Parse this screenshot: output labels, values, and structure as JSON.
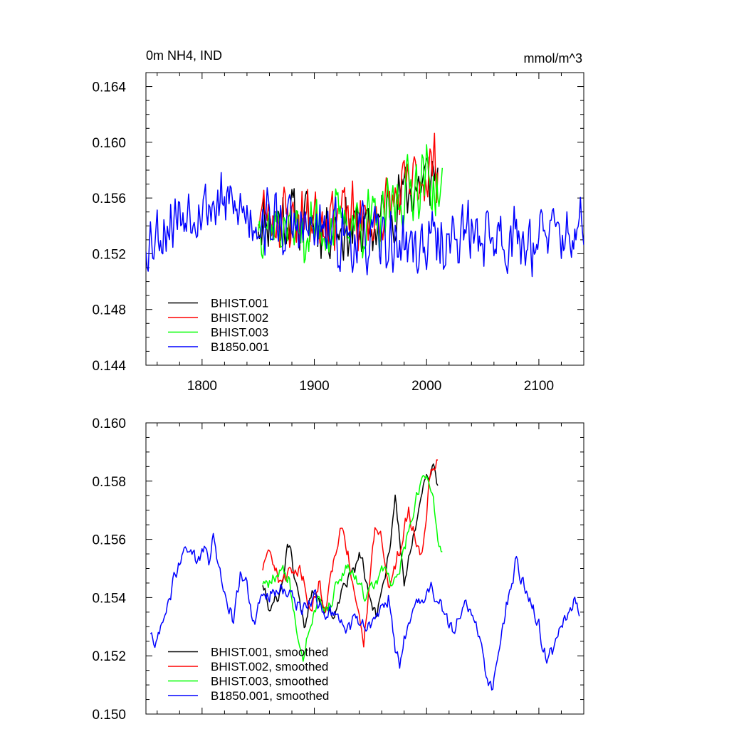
{
  "chart_data": [
    {
      "type": "line",
      "title_left": "0m NH4, IND",
      "title_right": "mmol/m^3",
      "xlim": [
        1750,
        2140
      ],
      "ylim": [
        0.144,
        0.165
      ],
      "xticks": [
        1800,
        1900,
        2000,
        2100
      ],
      "xtick_labels": [
        "1800",
        "1900",
        "2000",
        "2100"
      ],
      "yticks": [
        0.144,
        0.148,
        0.152,
        0.156,
        0.16,
        0.164
      ],
      "ytick_labels": [
        "0.144",
        "0.148",
        "0.152",
        "0.156",
        "0.160",
        "0.164"
      ],
      "legend_position": "bottom-left",
      "series": [
        {
          "name": "BHIST.001",
          "color": "#000000",
          "x_start": 1850,
          "noise": 0.0035,
          "seed": 11,
          "anchors": [
            [
              1850,
              0.1545
            ],
            [
              1880,
              0.1545
            ],
            [
              1920,
              0.154
            ],
            [
              1950,
              0.1535
            ],
            [
              1975,
              0.156
            ],
            [
              1995,
              0.157
            ],
            [
              2010,
              0.158
            ]
          ]
        },
        {
          "name": "BHIST.002",
          "color": "#ff0000",
          "x_start": 1850,
          "noise": 0.0035,
          "seed": 23,
          "anchors": [
            [
              1850,
              0.155
            ],
            [
              1880,
              0.1545
            ],
            [
              1920,
              0.155
            ],
            [
              1950,
              0.154
            ],
            [
              1975,
              0.156
            ],
            [
              1995,
              0.1575
            ],
            [
              2010,
              0.1585
            ]
          ]
        },
        {
          "name": "BHIST.003",
          "color": "#00ff00",
          "x_start": 1850,
          "noise": 0.0035,
          "seed": 37,
          "anchors": [
            [
              1850,
              0.1545
            ],
            [
              1890,
              0.1535
            ],
            [
              1930,
              0.1545
            ],
            [
              1960,
              0.154
            ],
            [
              1985,
              0.157
            ],
            [
              2000,
              0.1575
            ],
            [
              2014,
              0.156
            ]
          ]
        },
        {
          "name": "B1850.001",
          "color": "#0000ff",
          "x_start": 1750,
          "noise": 0.0035,
          "seed": 53,
          "anchors": [
            [
              1750,
              0.153
            ],
            [
              1790,
              0.1555
            ],
            [
              1820,
              0.1555
            ],
            [
              1850,
              0.1545
            ],
            [
              1900,
              0.1535
            ],
            [
              1950,
              0.153
            ],
            [
              1990,
              0.1525
            ],
            [
              2040,
              0.1535
            ],
            [
              2090,
              0.153
            ],
            [
              2140,
              0.1535
            ]
          ]
        }
      ]
    },
    {
      "type": "line",
      "xlim": [
        1750,
        2140
      ],
      "ylim": [
        0.15,
        0.16
      ],
      "xticks": [
        1800,
        1900,
        2000,
        2100
      ],
      "yticks": [
        0.15,
        0.152,
        0.154,
        0.156,
        0.158,
        0.16
      ],
      "ytick_labels": [
        "0.150",
        "0.152",
        "0.154",
        "0.156",
        "0.158",
        "0.160"
      ],
      "legend_position": "bottom-left",
      "series": [
        {
          "name": "BHIST.001, smoothed",
          "color": "#000000",
          "x_start": 1854,
          "noise": 0.00035,
          "seed": 101,
          "anchors": [
            [
              1854,
              0.1545
            ],
            [
              1860,
              0.1535
            ],
            [
              1866,
              0.154
            ],
            [
              1872,
              0.1545
            ],
            [
              1876,
              0.156
            ],
            [
              1880,
              0.1553
            ],
            [
              1886,
              0.154
            ],
            [
              1892,
              0.153
            ],
            [
              1898,
              0.1545
            ],
            [
              1904,
              0.154
            ],
            [
              1912,
              0.1535
            ],
            [
              1920,
              0.1535
            ],
            [
              1928,
              0.1545
            ],
            [
              1936,
              0.155
            ],
            [
              1942,
              0.1555
            ],
            [
              1948,
              0.154
            ],
            [
              1955,
              0.1535
            ],
            [
              1962,
              0.1545
            ],
            [
              1968,
              0.156
            ],
            [
              1972,
              0.1575
            ],
            [
              1976,
              0.156
            ],
            [
              1980,
              0.1545
            ],
            [
              1986,
              0.1555
            ],
            [
              1992,
              0.157
            ],
            [
              1998,
              0.158
            ],
            [
              2002,
              0.1582
            ],
            [
              2006,
              0.1585
            ],
            [
              2010,
              0.1578
            ]
          ]
        },
        {
          "name": "BHIST.002, smoothed",
          "color": "#ff0000",
          "x_start": 1854,
          "noise": 0.00035,
          "seed": 202,
          "anchors": [
            [
              1854,
              0.155
            ],
            [
              1858,
              0.1558
            ],
            [
              1864,
              0.1552
            ],
            [
              1870,
              0.1545
            ],
            [
              1880,
              0.155
            ],
            [
              1890,
              0.1548
            ],
            [
              1896,
              0.1535
            ],
            [
              1904,
              0.1545
            ],
            [
              1910,
              0.1535
            ],
            [
              1918,
              0.1555
            ],
            [
              1924,
              0.1565
            ],
            [
              1930,
              0.1555
            ],
            [
              1936,
              0.154
            ],
            [
              1944,
              0.1525
            ],
            [
              1948,
              0.154
            ],
            [
              1954,
              0.1565
            ],
            [
              1960,
              0.156
            ],
            [
              1966,
              0.1545
            ],
            [
              1972,
              0.155
            ],
            [
              1978,
              0.156
            ],
            [
              1984,
              0.157
            ],
            [
              1990,
              0.156
            ],
            [
              1996,
              0.1555
            ],
            [
              2000,
              0.157
            ],
            [
              2004,
              0.1585
            ],
            [
              2010,
              0.1586
            ]
          ]
        },
        {
          "name": "BHIST.003, smoothed",
          "color": "#00ff00",
          "x_start": 1854,
          "noise": 0.00035,
          "seed": 303,
          "anchors": [
            [
              1854,
              0.1545
            ],
            [
              1862,
              0.1545
            ],
            [
              1870,
              0.155
            ],
            [
              1878,
              0.1545
            ],
            [
              1884,
              0.153
            ],
            [
              1890,
              0.152
            ],
            [
              1896,
              0.153
            ],
            [
              1904,
              0.154
            ],
            [
              1912,
              0.1535
            ],
            [
              1920,
              0.1545
            ],
            [
              1930,
              0.155
            ],
            [
              1938,
              0.1545
            ],
            [
              1946,
              0.154
            ],
            [
              1954,
              0.1545
            ],
            [
              1962,
              0.155
            ],
            [
              1970,
              0.1545
            ],
            [
              1976,
              0.155
            ],
            [
              1982,
              0.156
            ],
            [
              1988,
              0.157
            ],
            [
              1994,
              0.1578
            ],
            [
              2000,
              0.1582
            ],
            [
              2006,
              0.1575
            ],
            [
              2010,
              0.156
            ],
            [
              2014,
              0.1555
            ]
          ]
        },
        {
          "name": "B1850.001, smoothed",
          "color": "#0000ff",
          "x_start": 1754,
          "noise": 0.0004,
          "seed": 404,
          "anchors": [
            [
              1754,
              0.1528
            ],
            [
              1758,
              0.1522
            ],
            [
              1764,
              0.1532
            ],
            [
              1770,
              0.1538
            ],
            [
              1776,
              0.1548
            ],
            [
              1784,
              0.1556
            ],
            [
              1790,
              0.1556
            ],
            [
              1796,
              0.1552
            ],
            [
              1802,
              0.1558
            ],
            [
              1806,
              0.1552
            ],
            [
              1810,
              0.1562
            ],
            [
              1816,
              0.1548
            ],
            [
              1822,
              0.1538
            ],
            [
              1828,
              0.1532
            ],
            [
              1834,
              0.1548
            ],
            [
              1840,
              0.1545
            ],
            [
              1846,
              0.153
            ],
            [
              1852,
              0.154
            ],
            [
              1860,
              0.154
            ],
            [
              1870,
              0.1545
            ],
            [
              1880,
              0.154
            ],
            [
              1890,
              0.1535
            ],
            [
              1900,
              0.154
            ],
            [
              1910,
              0.1535
            ],
            [
              1920,
              0.1535
            ],
            [
              1930,
              0.153
            ],
            [
              1940,
              0.1532
            ],
            [
              1950,
              0.153
            ],
            [
              1960,
              0.1535
            ],
            [
              1966,
              0.154
            ],
            [
              1972,
              0.1522
            ],
            [
              1976,
              0.1518
            ],
            [
              1982,
              0.1528
            ],
            [
              1988,
              0.1538
            ],
            [
              1996,
              0.1538
            ],
            [
              2004,
              0.1542
            ],
            [
              2012,
              0.1538
            ],
            [
              2020,
              0.153
            ],
            [
              2026,
              0.1528
            ],
            [
              2032,
              0.1538
            ],
            [
              2040,
              0.1535
            ],
            [
              2048,
              0.1525
            ],
            [
              2054,
              0.1512
            ],
            [
              2058,
              0.1508
            ],
            [
              2064,
              0.152
            ],
            [
              2070,
              0.1535
            ],
            [
              2076,
              0.1545
            ],
            [
              2080,
              0.1552
            ],
            [
              2086,
              0.1545
            ],
            [
              2092,
              0.154
            ],
            [
              2100,
              0.153
            ],
            [
              2106,
              0.152
            ],
            [
              2112,
              0.1522
            ],
            [
              2118,
              0.1528
            ],
            [
              2126,
              0.1535
            ],
            [
              2132,
              0.1538
            ],
            [
              2136,
              0.1535
            ]
          ]
        }
      ]
    }
  ]
}
